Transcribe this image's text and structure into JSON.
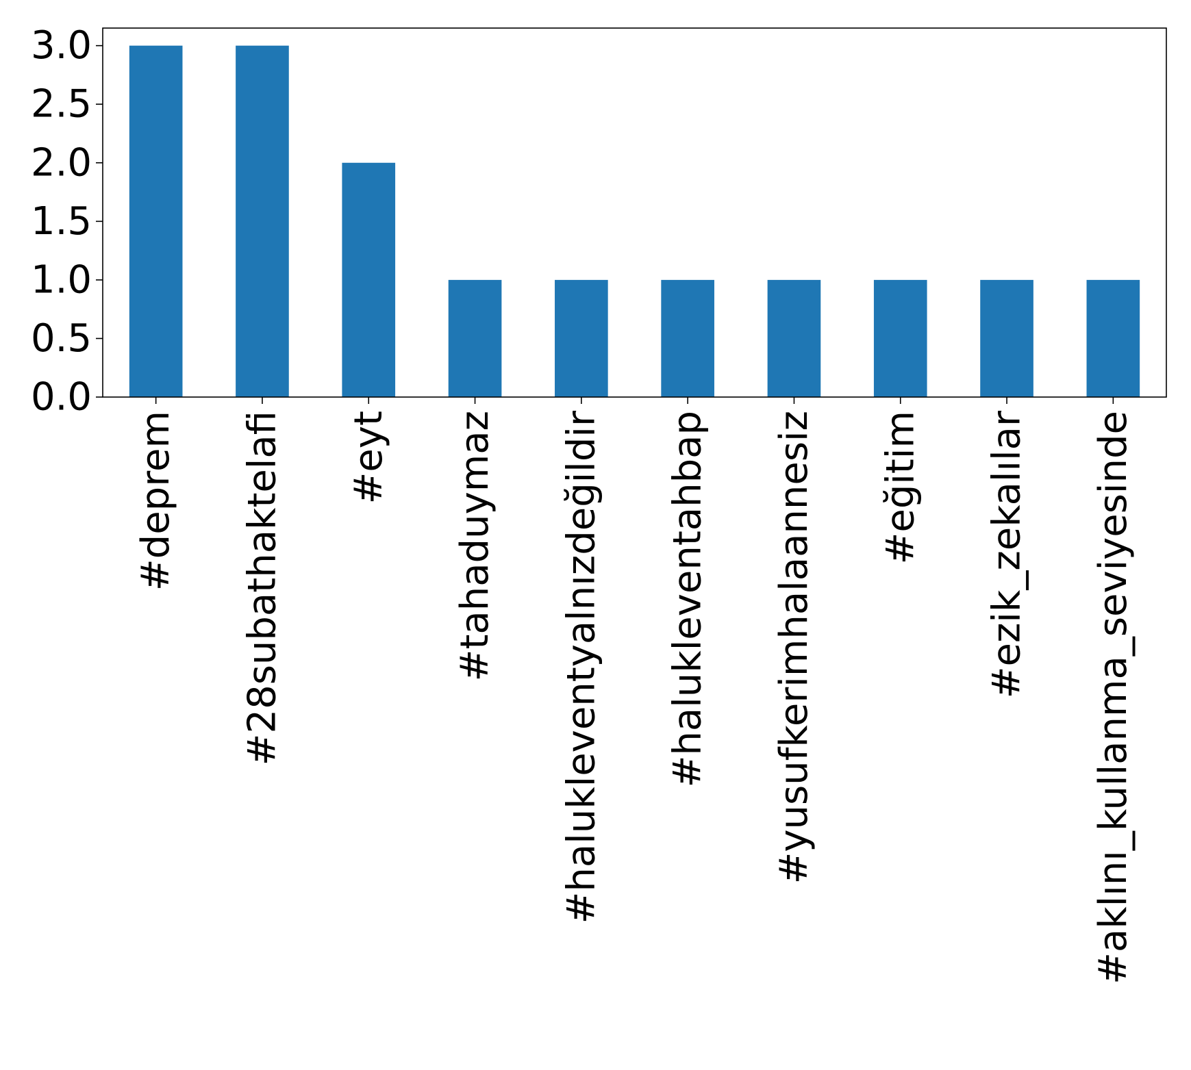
{
  "chart_data": {
    "type": "bar",
    "categories": [
      "#deprem",
      "#28subathaktelafi",
      "#eyt",
      "#tahaduymaz",
      "#halukleventyalnızdeğildir",
      "#halukleventahbap",
      "#yusufkerimhalaannesiz",
      "#eğitim",
      "#ezik_zekalılar",
      "#aklını_kullanma_seviyesinde"
    ],
    "values": [
      3,
      3,
      2,
      1,
      1,
      1,
      1,
      1,
      1,
      1
    ],
    "yticks": [
      "0.0",
      "0.5",
      "1.0",
      "1.5",
      "2.0",
      "2.5",
      "3.0"
    ],
    "ylim": [
      0,
      3.15
    ],
    "title": "",
    "xlabel": "",
    "ylabel": "",
    "bar_color": "#1f77b4",
    "grid": false,
    "legend": "none"
  }
}
